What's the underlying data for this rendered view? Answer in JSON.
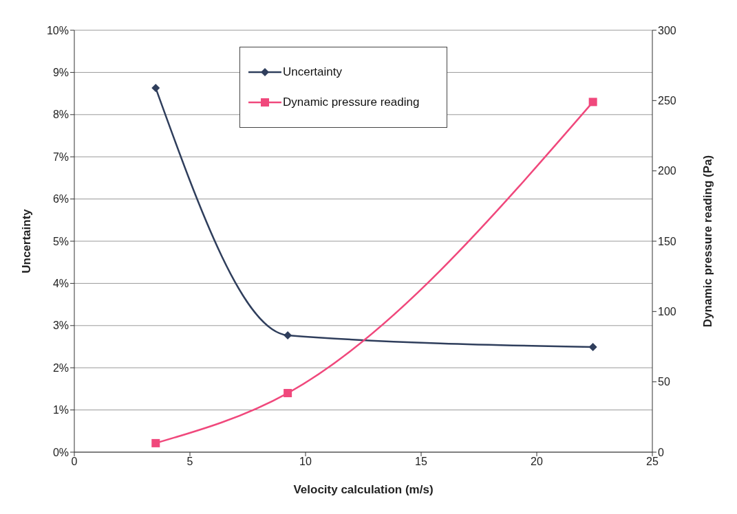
{
  "chart_data": {
    "type": "line",
    "xlabel": "Velocity calculation (m/s)",
    "ylabel": "Uncertainty",
    "y2label": "Dynamic pressure reading (Pa)",
    "x": [
      3.52,
      9.23,
      22.43
    ],
    "series": [
      {
        "name": "Uncertainty",
        "color": "#2f3e5c",
        "values": [
          8.63,
          2.77,
          2.49
        ],
        "marker": "diamond"
      },
      {
        "name": "Dynamic pressure reading",
        "color": "#f0487c",
        "values": [
          6.4,
          42,
          249
        ],
        "axis": "y2",
        "marker": "square"
      }
    ],
    "xlim": [
      0,
      25
    ],
    "xticks": [
      0,
      5,
      10,
      15,
      20,
      25
    ],
    "ylim": [
      0,
      10
    ],
    "yticks": [
      {
        "value": 0,
        "label": "0%"
      },
      {
        "value": 1,
        "label": "1%"
      },
      {
        "value": 2,
        "label": "2%"
      },
      {
        "value": 3,
        "label": "3%"
      },
      {
        "value": 4,
        "label": "4%"
      },
      {
        "value": 5,
        "label": "5%"
      },
      {
        "value": 6,
        "label": "6%"
      },
      {
        "value": 7,
        "label": "7%"
      },
      {
        "value": 8,
        "label": "8%"
      },
      {
        "value": 9,
        "label": "9%"
      },
      {
        "value": 10,
        "label": "10%"
      }
    ],
    "y2lim": [
      0,
      300
    ],
    "y2ticks": [
      0,
      50,
      100,
      150,
      200,
      250,
      300
    ],
    "grid": "y",
    "legend": "top",
    "line_style": "solid"
  }
}
